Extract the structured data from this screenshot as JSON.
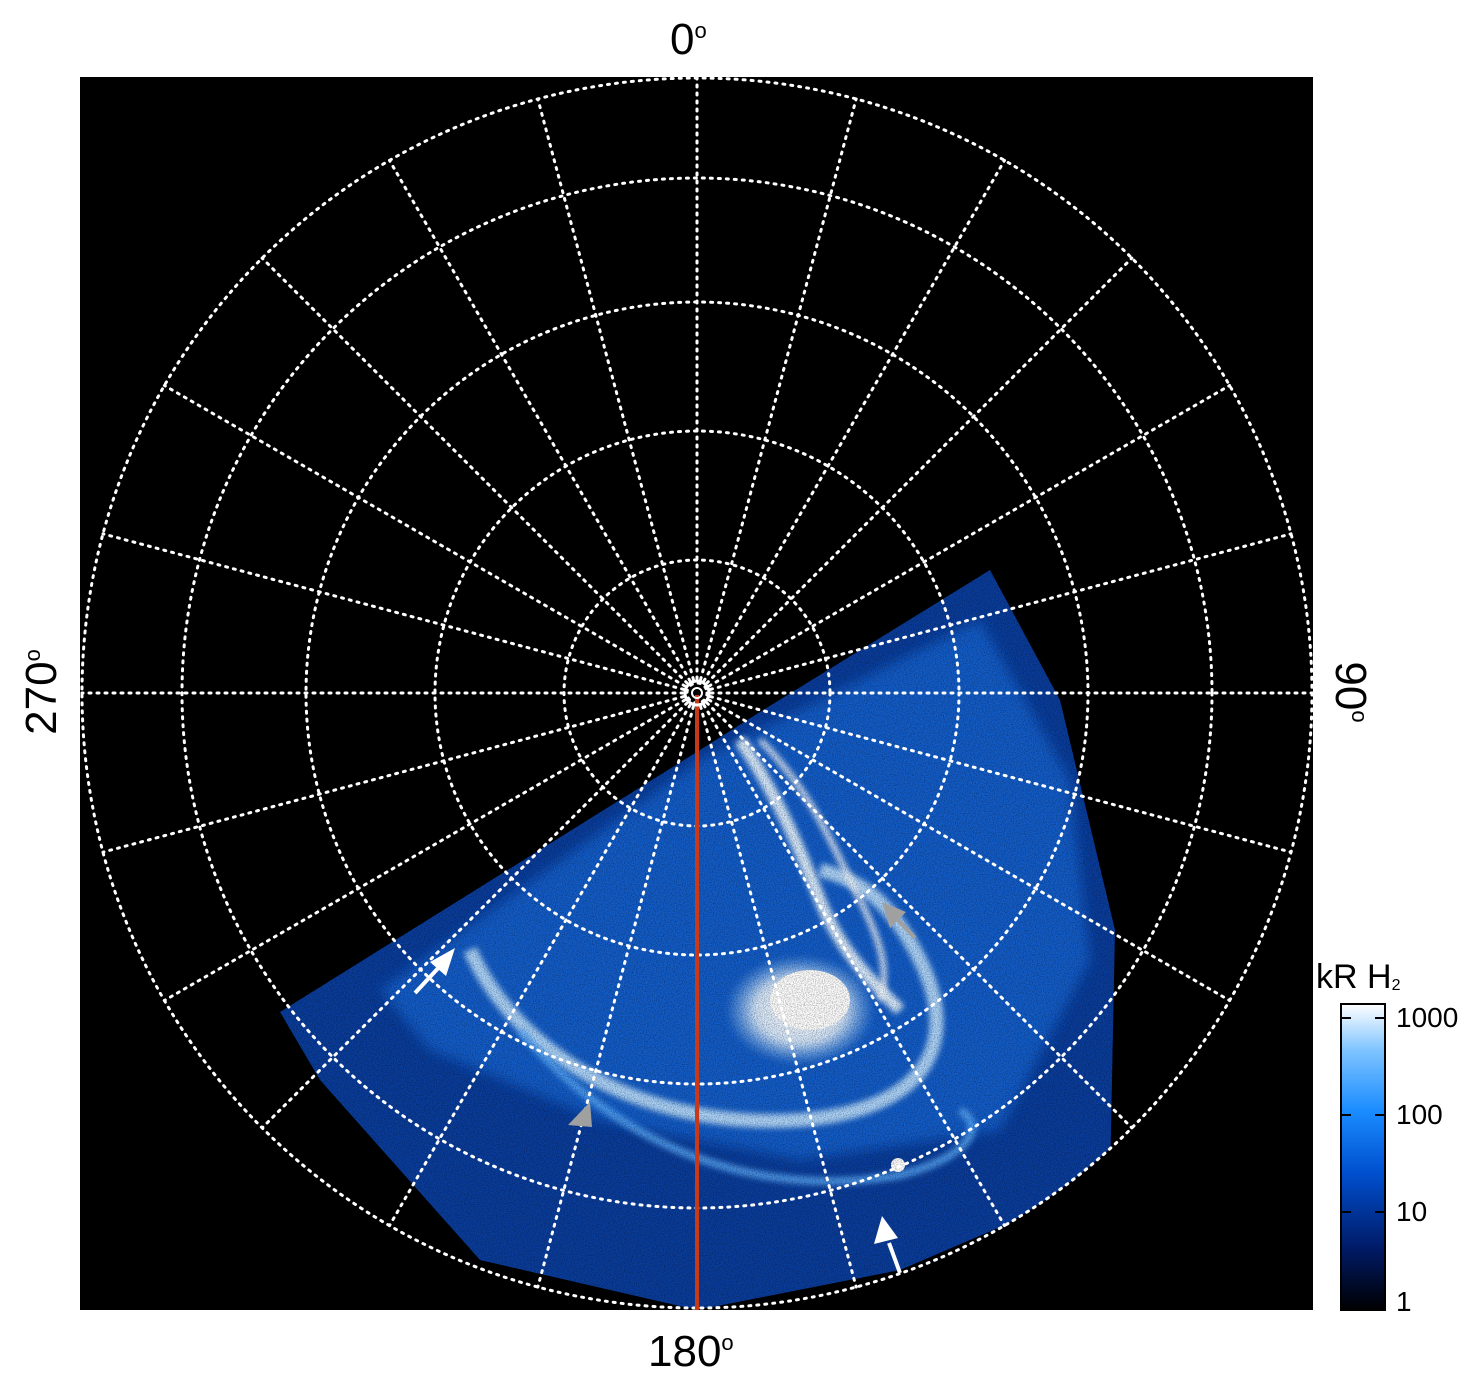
{
  "figure": {
    "labels": {
      "top": "0",
      "right": "90",
      "bottom": "180",
      "left": "270",
      "degree_symbol": "o"
    },
    "colorbar": {
      "title_main": "kR H",
      "title_sub": "2",
      "ticks": [
        "1000",
        "100",
        "10",
        "1"
      ],
      "scale": "log",
      "range": [
        1,
        1500
      ],
      "colors": [
        "#000000",
        "#001a66",
        "#0050d0",
        "#1a8cff",
        "#7fc4ff",
        "#ffffff"
      ]
    },
    "colors": {
      "background": "#000000",
      "grid": "#ffffff",
      "meridian_line": "#c8391a",
      "arrow_white": "#ffffff",
      "arrow_gray": "#a0a0a0"
    },
    "grid": {
      "style": "dotted",
      "meridians_every_deg": 15
    }
  }
}
